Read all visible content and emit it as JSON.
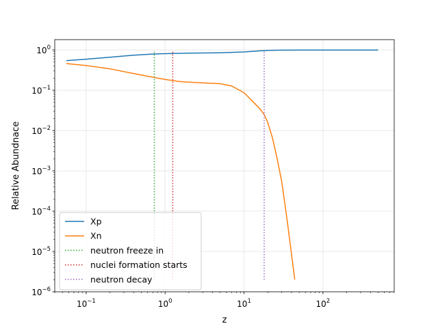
{
  "chart_data": {
    "type": "line",
    "title": "",
    "xlabel": "z",
    "ylabel": "Relative Abundnace",
    "xscale": "log",
    "yscale": "log",
    "xlim": [
      0.04,
      800
    ],
    "ylim": [
      1e-06,
      1.8
    ],
    "grid": true,
    "legend_position": "lower left",
    "x_ticks": [
      {
        "value": 0.1,
        "base": "10",
        "exp": "−1"
      },
      {
        "value": 1,
        "base": "10",
        "exp": "0"
      },
      {
        "value": 10,
        "base": "10",
        "exp": "1"
      },
      {
        "value": 100,
        "base": "10",
        "exp": "2"
      }
    ],
    "y_ticks": [
      {
        "value": 1e-06,
        "base": "10",
        "exp": "−6"
      },
      {
        "value": 1e-05,
        "base": "10",
        "exp": "−5"
      },
      {
        "value": 0.0001,
        "base": "10",
        "exp": "−4"
      },
      {
        "value": 0.001,
        "base": "10",
        "exp": "−3"
      },
      {
        "value": 0.01,
        "base": "10",
        "exp": "−2"
      },
      {
        "value": 0.1,
        "base": "10",
        "exp": "−1"
      },
      {
        "value": 1,
        "base": "10",
        "exp": "0"
      }
    ],
    "series": [
      {
        "name": "Xp",
        "color": "#1f77b4",
        "style": "solid",
        "x": [
          0.056,
          0.1,
          0.2,
          0.4,
          0.7,
          1.0,
          2.0,
          5.0,
          10,
          15,
          20,
          30,
          50,
          100,
          200,
          500
        ],
        "y": [
          0.54,
          0.59,
          0.66,
          0.74,
          0.79,
          0.81,
          0.83,
          0.85,
          0.89,
          0.94,
          0.97,
          0.985,
          0.99,
          0.99,
          0.99,
          0.99
        ]
      },
      {
        "name": "Xn",
        "color": "#ff7f0e",
        "style": "solid",
        "x": [
          0.056,
          0.1,
          0.2,
          0.4,
          0.7,
          1.0,
          1.5,
          2.0,
          3.0,
          5.0,
          7.0,
          10,
          13,
          16,
          18,
          20,
          23,
          26,
          30,
          35,
          40,
          44
        ],
        "y": [
          0.46,
          0.41,
          0.34,
          0.26,
          0.21,
          0.185,
          0.165,
          0.158,
          0.152,
          0.145,
          0.127,
          0.087,
          0.052,
          0.034,
          0.025,
          0.016,
          0.0065,
          0.0022,
          0.00055,
          6.5e-05,
          8.5e-06,
          2e-06
        ]
      },
      {
        "name": "neutron freeze in",
        "color": "#2ca02c",
        "style": "dotted",
        "x": [
          0.73,
          0.73
        ],
        "y": [
          2e-06,
          1.0
        ]
      },
      {
        "name": "nuclei formation starts",
        "color": "#d62728",
        "style": "dotted",
        "x": [
          1.25,
          1.25
        ],
        "y": [
          2e-06,
          1.0
        ]
      },
      {
        "name": "neutron decay",
        "color": "#9467bd",
        "style": "dotted",
        "x": [
          18,
          18
        ],
        "y": [
          2e-06,
          1.0
        ]
      }
    ]
  }
}
